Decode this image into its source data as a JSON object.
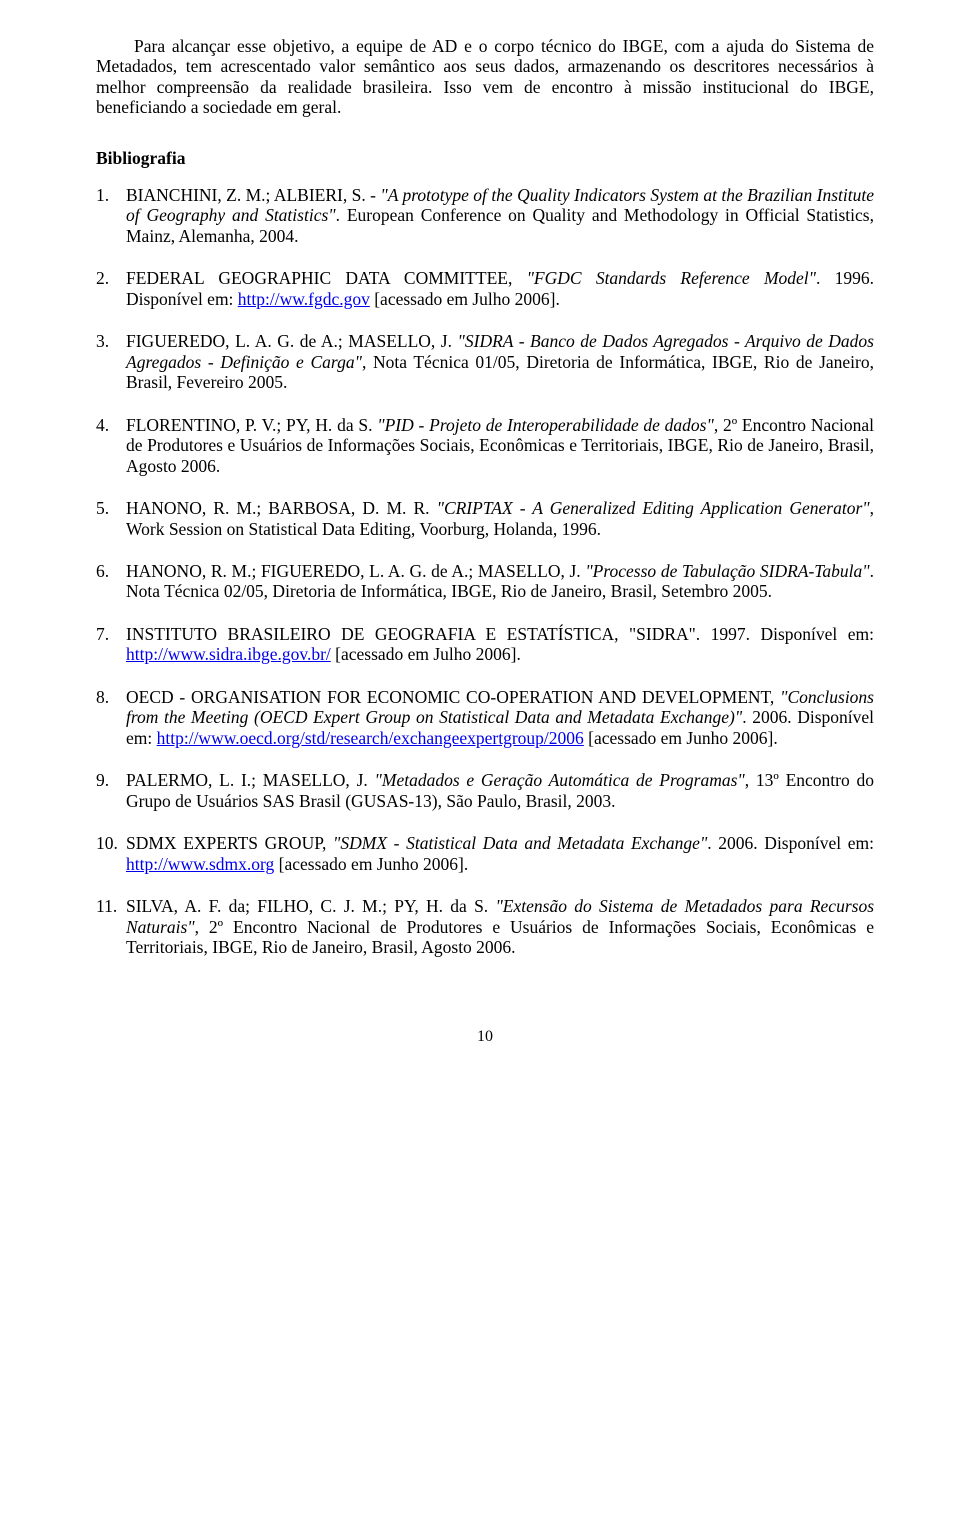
{
  "intro": {
    "p1": "Para alcançar esse objetivo, a equipe de AD e o corpo técnico do IBGE, com a ajuda do Sistema de Metadados, tem acrescentado valor semântico aos seus dados, armazenando os descritores necessários à melhor compreensão da realidade brasileira. Isso vem de encontro à missão institucional do IBGE, beneficiando a  sociedade em geral."
  },
  "heading": "Bibliografia",
  "bib": {
    "i1": {
      "a": "BIANCHINI, Z. M.; ALBIERI, S. - ",
      "t": "\"A prototype of the Quality Indicators System at the Brazilian Institute of Geography and Statistics\"",
      "b": ". European Conference on Quality and Methodology in Official Statistics, Mainz, Alemanha, 2004."
    },
    "i2": {
      "a": "FEDERAL GEOGRAPHIC DATA COMMITTEE, ",
      "t": "\"FGDC Standards Reference Model\"",
      "b": ". 1996. Disponível em: ",
      "l": "http://ww.fgdc.gov",
      "c": " [acessado em Julho 2006]."
    },
    "i3": {
      "a": "FIGUEREDO, L. A. G. de A.;  MASELLO, J. ",
      "t": "\"SIDRA - Banco de Dados Agregados - Arquivo de Dados Agregados - Definição e Carga\"",
      "b": ", Nota Técnica 01/05, Diretoria de Informática, IBGE, Rio de Janeiro, Brasil, Fevereiro 2005."
    },
    "i4": {
      "a": "FLORENTINO, P. V.; PY, H. da S. ",
      "t": "\"PID - Projeto de Interoperabilidade de dados\"",
      "b": ", 2º Encontro Nacional de Produtores e Usuários de Informações Sociais, Econômicas e Territoriais, IBGE, Rio de Janeiro, Brasil, Agosto 2006."
    },
    "i5": {
      "a": "HANONO, R. M.; BARBOSA, D. M. R. ",
      "t": "\"CRIPTAX - A Generalized Editing Application Generator\"",
      "b": ", Work Session on Statistical Data Editing, Voorburg, Holanda, 1996."
    },
    "i6": {
      "a": "HANONO, R. M.; FIGUEREDO, L. A. G. de A.;  MASELLO, J. ",
      "t": "\"Processo de Tabulação SIDRA-Tabula\"",
      "b": ". Nota Técnica 02/05, Diretoria de Informática",
      "bi": ",",
      "c": " IBGE, Rio de Janeiro, Brasil, Setembro 2005."
    },
    "i7": {
      "a": "INSTITUTO BRASILEIRO DE GEOGRAFIA E ESTATÍSTICA, \"SIDRA\". 1997. Disponível em: ",
      "l": "http://www.sidra.ibge.gov.br/",
      "c": " [acessado em Julho 2006]."
    },
    "i8": {
      "a": "OECD - ORGANISATION FOR ECONOMIC CO-OPERATION AND DEVELOPMENT, ",
      "t": "\"Conclusions from the Meeting (OECD Expert Group on Statistical Data and Metadata Exchange)\"",
      "b": ". 2006. Disponível em: ",
      "l": "http://www.oecd.org/std/research/exchangeexpertgroup/2006",
      "c": " [acessado em Junho 2006]."
    },
    "i9": {
      "a": "PALERMO, L. I.; MASELLO, J. ",
      "t": "\"Metadados e Geração Automática de Programas\"",
      "b": ", 13º Encontro do Grupo de Usuários SAS Brasil (GUSAS-13), São Paulo, Brasil, 2003."
    },
    "i10": {
      "a": "SDMX EXPERTS GROUP, ",
      "t": "\"SDMX - Statistical Data and Metadata Exchange\"",
      "b": ". 2006. Disponível em: ",
      "l": "http://www.sdmx.org",
      "c": " [acessado em Junho 2006]."
    },
    "i11": {
      "a": "SILVA, A. F. da; FILHO, C. J. M.; PY, H. da S. ",
      "t": "\"Extensão do Sistema de Metadados para Recursos Naturais\"",
      "b": ", 2º Encontro Nacional de Produtores e Usuários de Informações Sociais, Econômicas e Territoriais, IBGE, Rio de Janeiro, Brasil, Agosto 2006."
    }
  },
  "pagenum": "10"
}
